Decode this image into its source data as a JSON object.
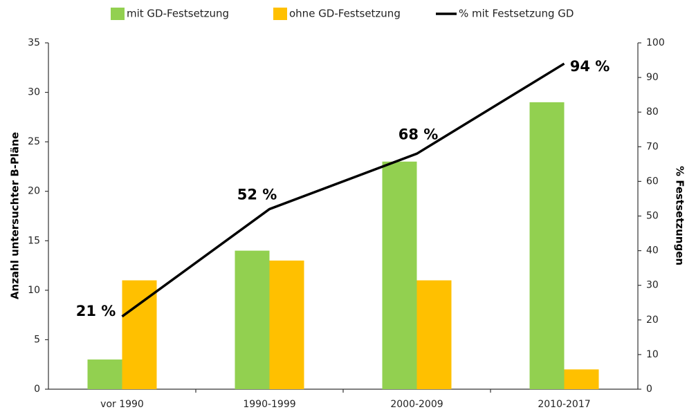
{
  "chart_data": {
    "type": "bar",
    "categories": [
      "vor 1990",
      "1990-1999",
      "2000-2009",
      "2010-2017"
    ],
    "series": [
      {
        "name": "mit GD-Festsetzung",
        "color": "#92d050",
        "values": [
          3,
          14,
          23,
          29
        ]
      },
      {
        "name": "ohne GD-Festsetzung",
        "color": "#ffc000",
        "values": [
          11,
          13,
          11,
          2
        ]
      },
      {
        "name": "% mit Festsetzung GD",
        "color": "#000000",
        "type": "line",
        "axis": "y2",
        "values": [
          21,
          52,
          68,
          94
        ],
        "value_labels": [
          "21 %",
          "52 %",
          "68 %",
          "94 %"
        ]
      }
    ],
    "ylabel": "Anzahl untersuchter B-Pläne",
    "y2label": "% Festsetzungen",
    "ylim": [
      0,
      35
    ],
    "yticks": [
      0,
      5,
      10,
      15,
      20,
      25,
      30,
      35
    ],
    "y2lim": [
      0,
      100
    ],
    "y2ticks": [
      0,
      10,
      20,
      30,
      40,
      50,
      60,
      70,
      80,
      90,
      100
    ],
    "grid": false,
    "legend": "top"
  }
}
